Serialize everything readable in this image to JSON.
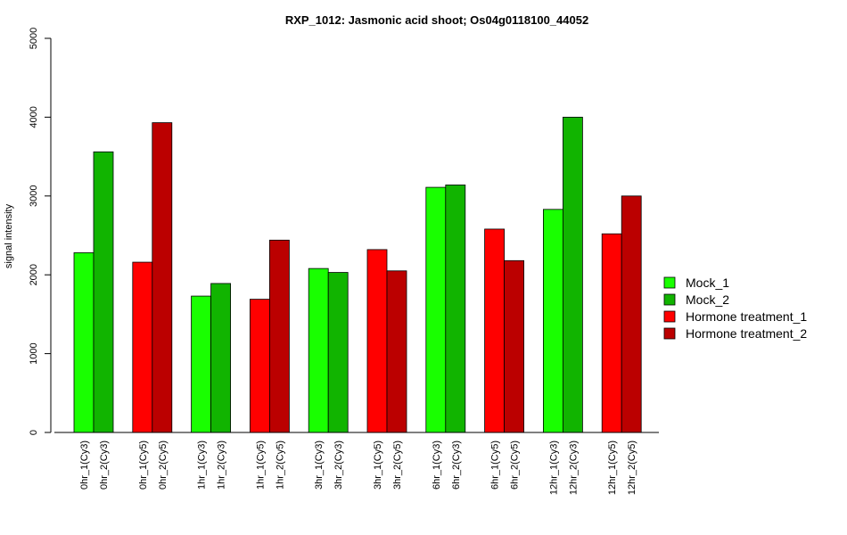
{
  "chart_data": {
    "type": "bar",
    "title": "RXP_1012: Jasmonic acid shoot; Os04g0118100_44052",
    "ylabel": "signal intensity",
    "xlabel": "",
    "ylim": [
      0,
      5000
    ],
    "yticks": [
      0,
      1000,
      2000,
      3000,
      4000,
      5000
    ],
    "grid": false,
    "legend_position": "right",
    "series": [
      {
        "name": "Mock_1",
        "color": "#19FF00"
      },
      {
        "name": "Mock_2",
        "color": "#11B400"
      },
      {
        "name": "Hormone treatment_1",
        "color": "#FF0000"
      },
      {
        "name": "Hormone treatment_2",
        "color": "#BB0000"
      }
    ],
    "groups": [
      {
        "bars": [
          {
            "label": "0hr_1(Cy3)",
            "value": 2280,
            "series": 0
          },
          {
            "label": "0hr_2(Cy3)",
            "value": 3560,
            "series": 1
          }
        ]
      },
      {
        "bars": [
          {
            "label": "0hr_1(Cy5)",
            "value": 2160,
            "series": 2
          },
          {
            "label": "0hr_2(Cy5)",
            "value": 3930,
            "series": 3
          }
        ]
      },
      {
        "bars": [
          {
            "label": "1hr_1(Cy3)",
            "value": 1730,
            "series": 0
          },
          {
            "label": "1hr_2(Cy3)",
            "value": 1890,
            "series": 1
          }
        ]
      },
      {
        "bars": [
          {
            "label": "1hr_1(Cy5)",
            "value": 1690,
            "series": 2
          },
          {
            "label": "1hr_2(Cy5)",
            "value": 2440,
            "series": 3
          }
        ]
      },
      {
        "bars": [
          {
            "label": "3hr_1(Cy3)",
            "value": 2080,
            "series": 0
          },
          {
            "label": "3hr_2(Cy3)",
            "value": 2030,
            "series": 1
          }
        ]
      },
      {
        "bars": [
          {
            "label": "3hr_1(Cy5)",
            "value": 2320,
            "series": 2
          },
          {
            "label": "3hr_2(Cy5)",
            "value": 2050,
            "series": 3
          }
        ]
      },
      {
        "bars": [
          {
            "label": "6hr_1(Cy3)",
            "value": 3110,
            "series": 0
          },
          {
            "label": "6hr_2(Cy3)",
            "value": 3140,
            "series": 1
          }
        ]
      },
      {
        "bars": [
          {
            "label": "6hr_1(Cy5)",
            "value": 2580,
            "series": 2
          },
          {
            "label": "6hr_2(Cy5)",
            "value": 2180,
            "series": 3
          }
        ]
      },
      {
        "bars": [
          {
            "label": "12hr_1(Cy3)",
            "value": 2830,
            "series": 0
          },
          {
            "label": "12hr_2(Cy3)",
            "value": 4000,
            "series": 1
          }
        ]
      },
      {
        "bars": [
          {
            "label": "12hr_1(Cy5)",
            "value": 2520,
            "series": 2
          },
          {
            "label": "12hr_2(Cy5)",
            "value": 3000,
            "series": 3
          }
        ]
      }
    ]
  }
}
